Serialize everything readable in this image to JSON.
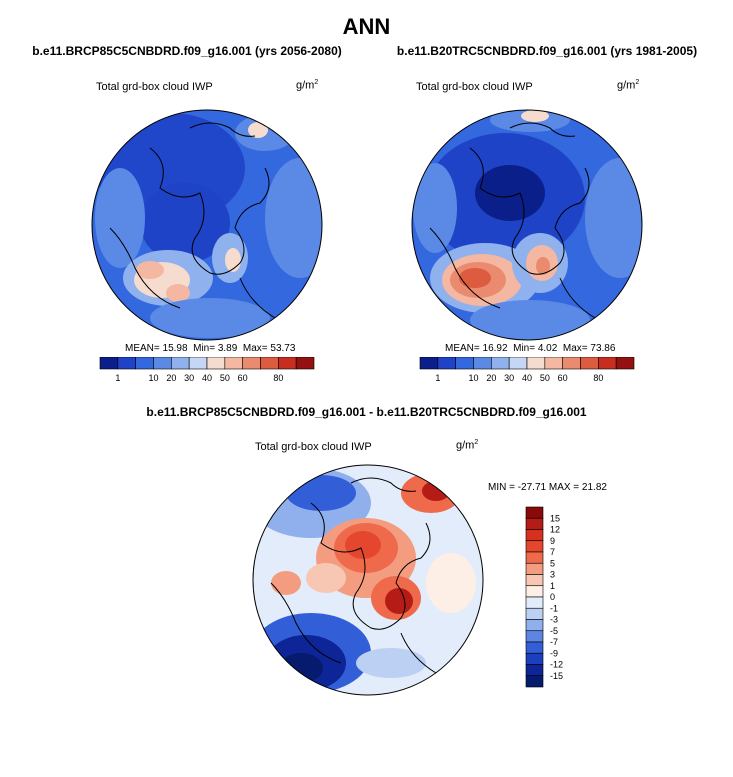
{
  "header": {
    "title": "ANN"
  },
  "chart_data": [
    {
      "type": "heatmap",
      "projection": "north-polar-stereographic",
      "title": "b.e11.BRCP85C5CNBDRD.f09_g16.001 (yrs 2056-2080)",
      "variable": "Total grd-box cloud IWP",
      "units_base": "g/m",
      "units_exp": "2",
      "stats": {
        "mean_label": "MEAN=",
        "mean": "15.98",
        "min_label": "Min=",
        "min": "3.89",
        "max_label": "Max=",
        "max": "53.73"
      },
      "colorbar": {
        "orientation": "horizontal",
        "levels": [
          1,
          10,
          20,
          30,
          40,
          50,
          60,
          80
        ],
        "colors": [
          "#0a1f8a",
          "#1e43c6",
          "#3468de",
          "#5b8ae6",
          "#8fb1ee",
          "#c5d7f4",
          "#f6dccf",
          "#f3b7a2",
          "#ea8a6e",
          "#dd5b3f",
          "#c72e1f",
          "#951010"
        ]
      }
    },
    {
      "type": "heatmap",
      "projection": "north-polar-stereographic",
      "title": "b.e11.B20TRC5CNBDRD.f09_g16.001 (yrs 1981-2005)",
      "variable": "Total grd-box cloud IWP",
      "units_base": "g/m",
      "units_exp": "2",
      "stats": {
        "mean_label": "MEAN=",
        "mean": "16.92",
        "min_label": "Min=",
        "min": "4.02",
        "max_label": "Max=",
        "max": "73.86"
      },
      "colorbar": {
        "orientation": "horizontal",
        "levels": [
          1,
          10,
          20,
          30,
          40,
          50,
          60,
          80
        ],
        "colors": [
          "#0a1f8a",
          "#1e43c6",
          "#3468de",
          "#5b8ae6",
          "#8fb1ee",
          "#c5d7f4",
          "#f6dccf",
          "#f3b7a2",
          "#ea8a6e",
          "#dd5b3f",
          "#c72e1f",
          "#951010"
        ]
      }
    },
    {
      "type": "heatmap",
      "projection": "north-polar-stereographic",
      "title": "b.e11.BRCP85C5CNBDRD.f09_g16.001 - b.e11.B20TRC5CNBDRD.f09_g16.001",
      "variable": "Total grd-box cloud IWP",
      "units_base": "g/m",
      "units_exp": "2",
      "stats_text": "MIN = -27.71 MAX =  21.82",
      "colorbar": {
        "orientation": "vertical",
        "levels": [
          15,
          12,
          9,
          7,
          5,
          3,
          1,
          0,
          -1,
          -3,
          -5,
          -7,
          -9,
          -12,
          -15
        ],
        "colors": [
          "#8a0a0a",
          "#b51c16",
          "#d6301f",
          "#e4472d",
          "#ee6a4b",
          "#f39c80",
          "#f8c7b3",
          "#fdeee6",
          "#e3ecfa",
          "#bcd0f4",
          "#8fb0ec",
          "#5c86e2",
          "#325ed8",
          "#1a3fbf",
          "#0d2596",
          "#061a6e"
        ]
      }
    }
  ]
}
